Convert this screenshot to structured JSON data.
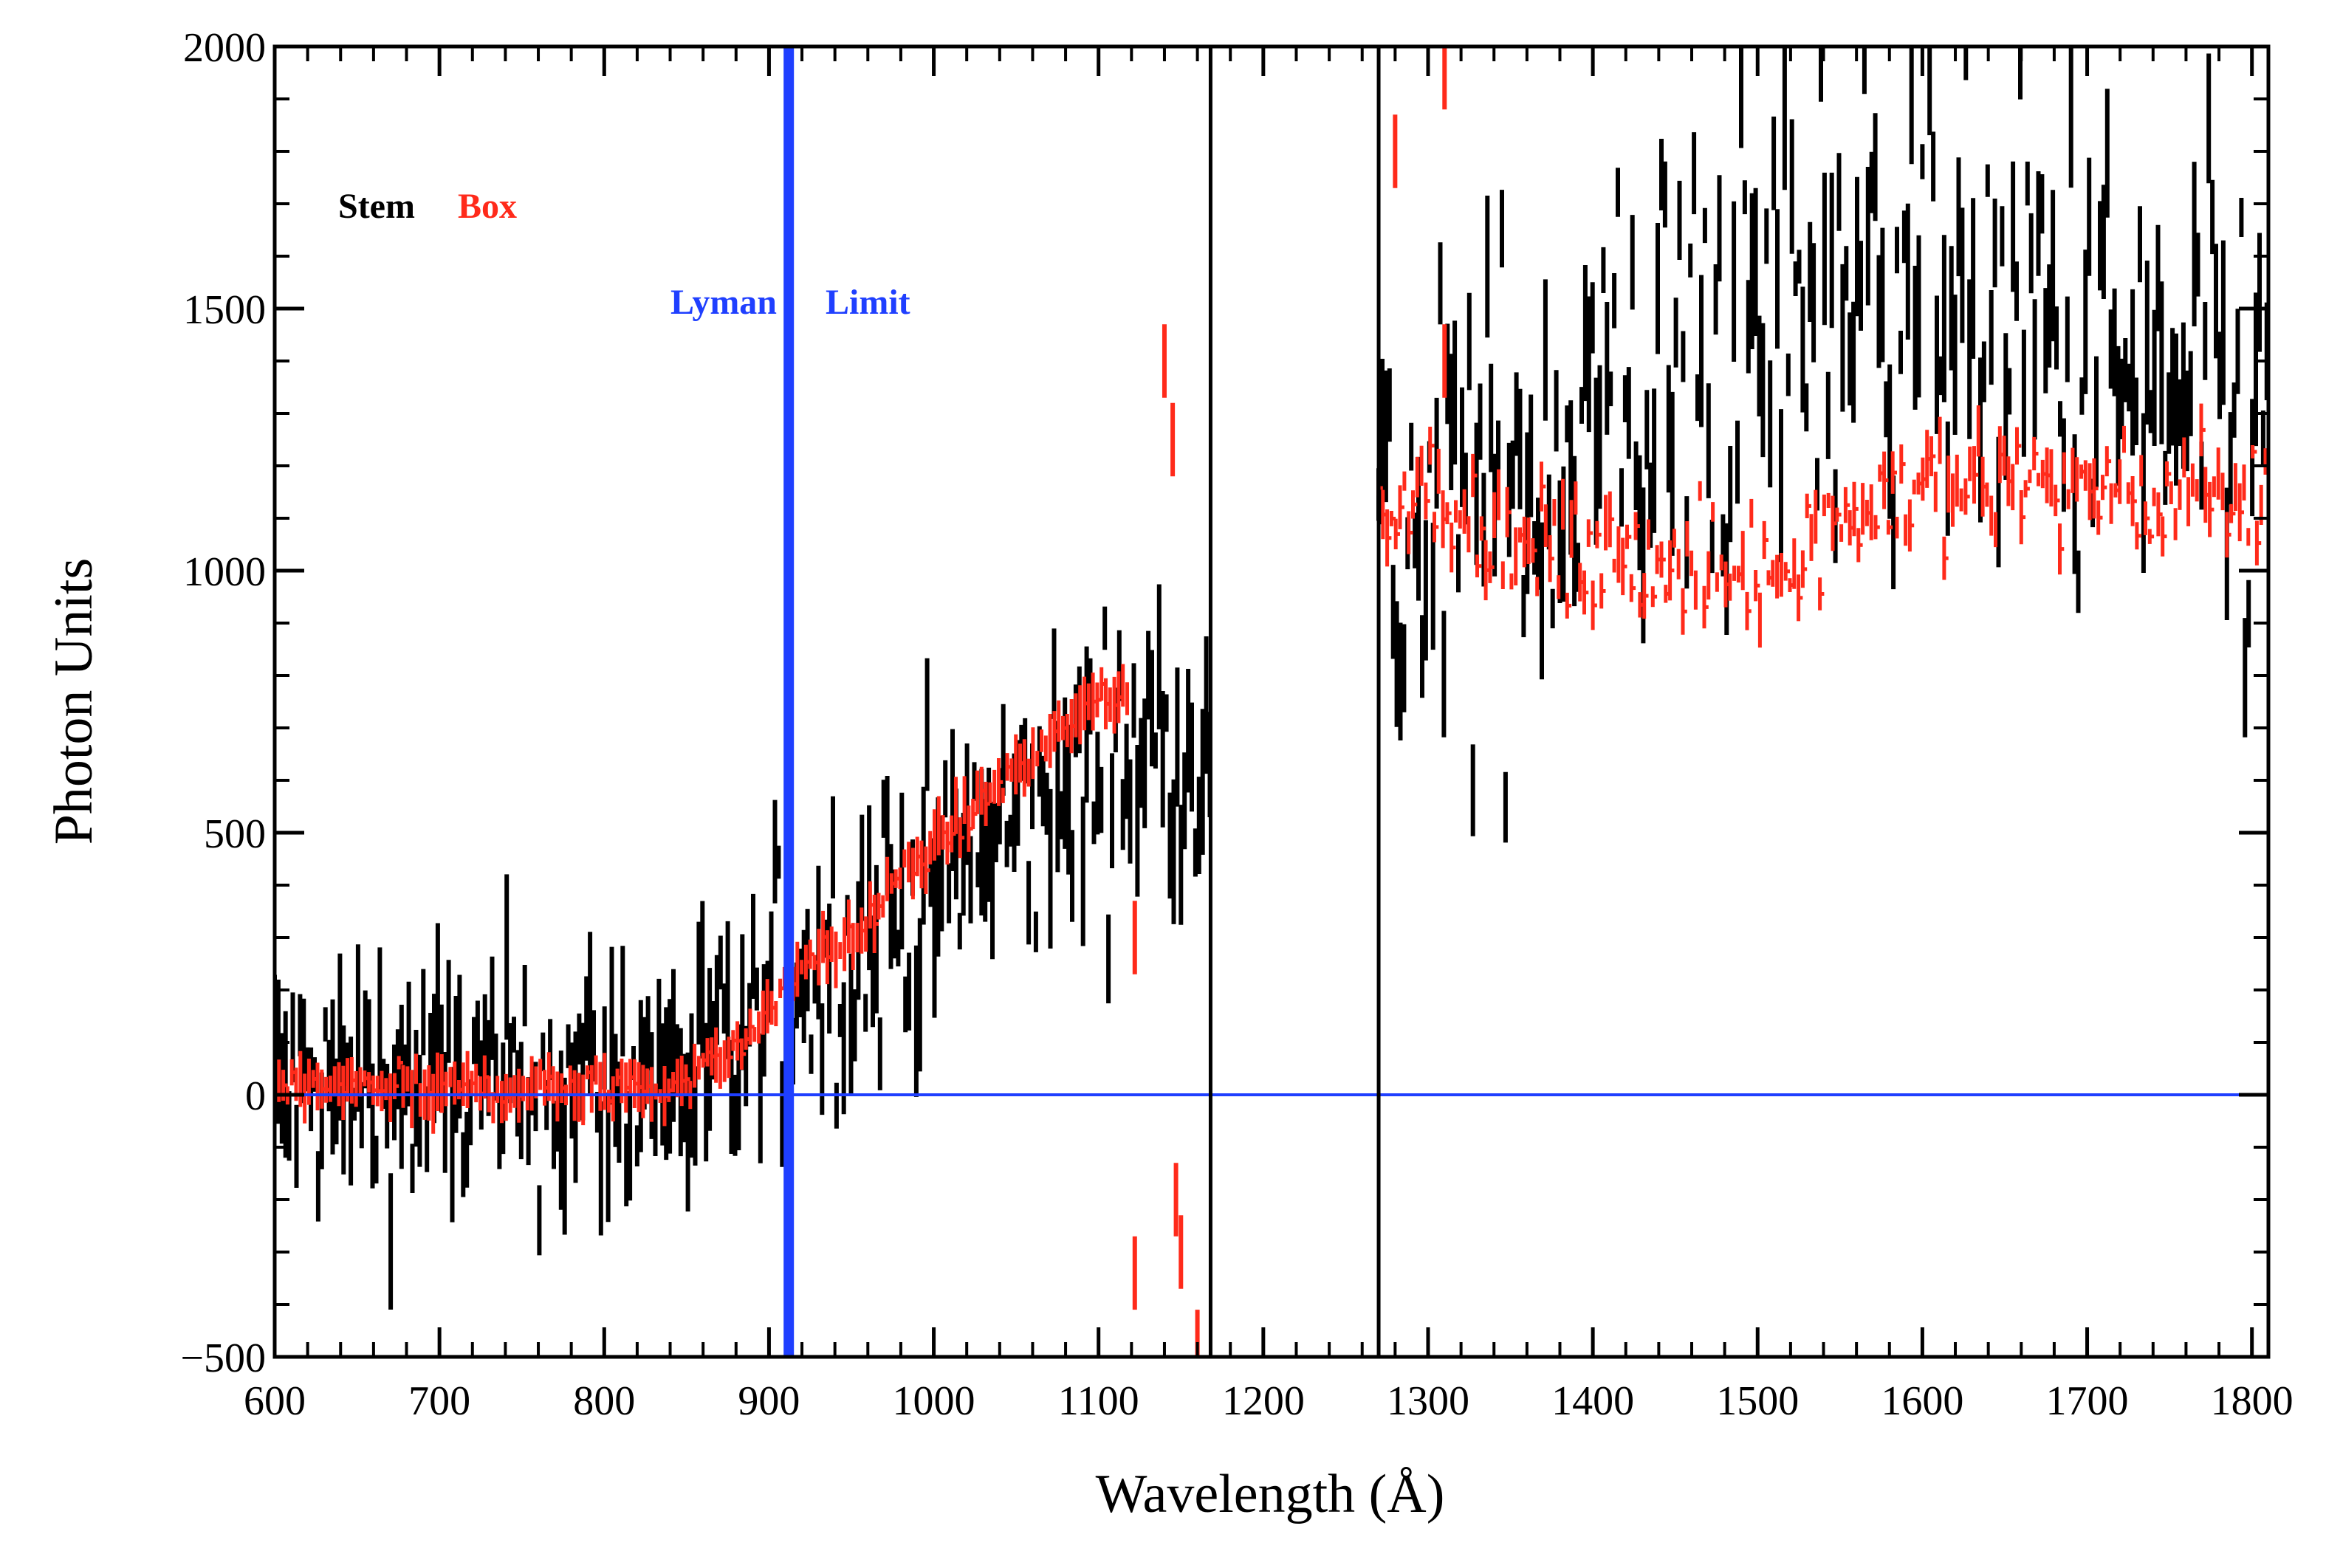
{
  "chart_data": {
    "type": "line",
    "title": "",
    "xlabel": "Wavelength (Å)",
    "ylabel": "Photon Units",
    "xlim": [
      600,
      1810
    ],
    "ylim": [
      -500,
      2000
    ],
    "x_ticks": [
      600,
      700,
      800,
      900,
      1000,
      1100,
      1200,
      1300,
      1400,
      1500,
      1600,
      1700,
      1800
    ],
    "y_ticks": [
      -500,
      0,
      500,
      1000,
      1500,
      2000
    ],
    "grid": false,
    "legend": [
      {
        "label": "Stem",
        "color": "#000000"
      },
      {
        "label": "Box",
        "color": "#ff2a1a"
      }
    ],
    "annotations": [
      {
        "text_left": "Lyman",
        "text_right": "Limit",
        "x": 912,
        "color": "#1f3fff"
      }
    ],
    "reference_lines": {
      "horizontal_zero": {
        "y": 0,
        "color": "#1f3fff"
      },
      "lyman_limit": {
        "x": 912,
        "color": "#1f3fff"
      },
      "gap_boundaries": [
        1168,
        1270
      ]
    },
    "series": [
      {
        "name": "Stem",
        "color": "#000000",
        "segments": [
          {
            "x_start": 600,
            "x_end": 1168,
            "profile": [
              [
                600,
                0
              ],
              [
                700,
                10
              ],
              [
                800,
                20
              ],
              [
                880,
                60
              ],
              [
                912,
                200
              ],
              [
                1000,
                400
              ],
              [
                1100,
                620
              ],
              [
                1150,
                700
              ],
              [
                1168,
                660
              ]
            ],
            "noise": 260
          },
          {
            "x_start": 1270,
            "x_end": 1810,
            "profile": [
              [
                1270,
                1000
              ],
              [
                1300,
                1050
              ],
              [
                1400,
                1300
              ],
              [
                1500,
                1450
              ],
              [
                1550,
                1550
              ],
              [
                1600,
                1650
              ],
              [
                1650,
                1500
              ],
              [
                1700,
                1400
              ],
              [
                1750,
                1300
              ],
              [
                1810,
                1250
              ]
            ],
            "noise": 480
          }
        ]
      },
      {
        "name": "Box",
        "color": "#ff2a1a",
        "segments": [
          {
            "x_start": 600,
            "x_end": 1120,
            "profile": [
              [
                600,
                15
              ],
              [
                700,
                10
              ],
              [
                800,
                15
              ],
              [
                850,
                20
              ],
              [
                900,
                150
              ],
              [
                912,
                230
              ],
              [
                950,
                300
              ],
              [
                1000,
                480
              ],
              [
                1050,
                620
              ],
              [
                1100,
                760
              ],
              [
                1120,
                780
              ]
            ],
            "noise": 35
          },
          {
            "x_start": 1270,
            "x_end": 1810,
            "profile": [
              [
                1270,
                1050
              ],
              [
                1300,
                1180
              ],
              [
                1350,
                1050
              ],
              [
                1400,
                1020
              ],
              [
                1450,
                1000
              ],
              [
                1500,
                1000
              ],
              [
                1550,
                1100
              ],
              [
                1600,
                1150
              ],
              [
                1650,
                1180
              ],
              [
                1700,
                1150
              ],
              [
                1750,
                1120
              ],
              [
                1810,
                1150
              ]
            ],
            "noise": 110
          }
        ],
        "outliers": [
          [
            1122,
            300
          ],
          [
            1122,
            -340
          ],
          [
            1140,
            1400
          ],
          [
            1145,
            1250
          ],
          [
            1147,
            -200
          ],
          [
            1150,
            -300
          ],
          [
            1280,
            1800
          ],
          [
            1310,
            1950
          ],
          [
            1310,
            1400
          ],
          [
            1160,
            -480
          ]
        ]
      }
    ]
  }
}
